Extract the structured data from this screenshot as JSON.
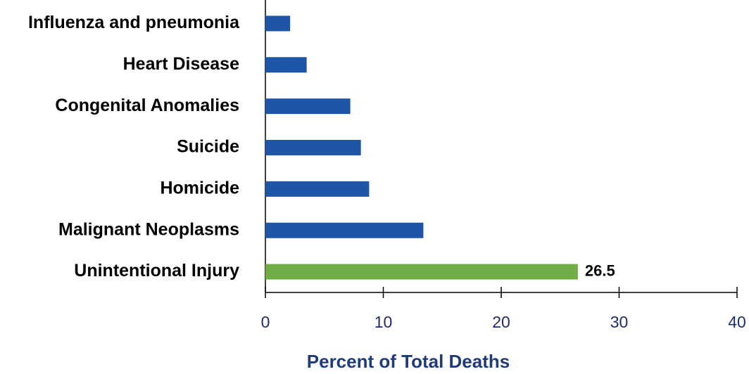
{
  "chart_data": {
    "type": "barh",
    "x_label": "Percent of Total Deaths",
    "categories": [
      "Influenza and pneumonia",
      "Heart Disease",
      "Congenital Anomalies",
      "Suicide",
      "Homicide",
      "Malignant Neoplasms",
      "Unintentional Injury"
    ],
    "values": [
      2.1,
      3.5,
      7.2,
      8.1,
      8.8,
      13.4,
      26.5
    ],
    "value_labels": [
      null,
      null,
      null,
      null,
      null,
      null,
      "26.5"
    ],
    "colors": [
      "#1f55a6",
      "#1f55a6",
      "#1f55a6",
      "#1f55a6",
      "#1f55a6",
      "#1f55a6",
      "#70ad47"
    ],
    "xlim": [
      0,
      40
    ],
    "xticks": [
      0,
      10,
      20,
      30,
      40
    ]
  }
}
